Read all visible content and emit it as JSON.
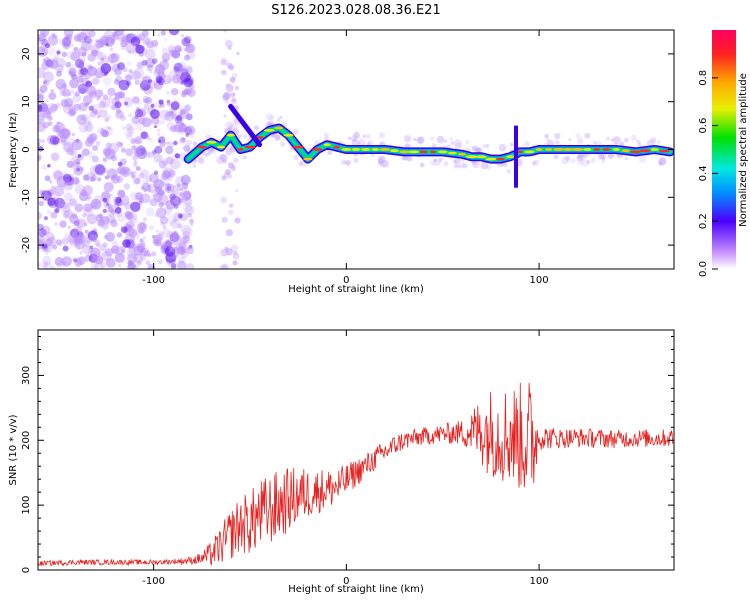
{
  "title": "S126.2023.028.08.36.E21",
  "colors": {
    "snr_line": "#e8201e",
    "cloud": "#9b55ff",
    "track_core": "#ff2020"
  },
  "chart_data": [
    {
      "type": "heatmap",
      "xlabel": "Height of straight line (km)",
      "ylabel": "Frequency (Hz)",
      "xlim": [
        -160,
        170
      ],
      "ylim": [
        -25,
        25
      ],
      "x_ticks": [
        -100,
        0,
        100
      ],
      "y_ticks": [
        -20,
        -10,
        0,
        10,
        20
      ],
      "colorbar": {
        "label": "Normalized spectral amplitude",
        "range": [
          0.0,
          1.0
        ],
        "ticks": [
          "0.0",
          "0.2",
          "0.4",
          "0.6",
          "0.8"
        ]
      },
      "noise_region_x": [
        -160,
        -80
      ],
      "track": {
        "x": [
          -82,
          -75,
          -70,
          -65,
          -60,
          -55,
          -50,
          -45,
          -40,
          -35,
          -30,
          -25,
          -22,
          -20,
          -15,
          -10,
          -5,
          0,
          10,
          20,
          30,
          40,
          50,
          60,
          65,
          70,
          75,
          80,
          85,
          88,
          90,
          95,
          100,
          110,
          120,
          130,
          140,
          150,
          160,
          168
        ],
        "y": [
          -2,
          0.5,
          1.5,
          0.5,
          3,
          0,
          0.5,
          2.5,
          4,
          4.5,
          3,
          0.5,
          -1,
          -2,
          0,
          1,
          0.5,
          0,
          0,
          0,
          -0.5,
          -0.5,
          -0.5,
          -1,
          -1.5,
          -1.5,
          -2,
          -2,
          -1.5,
          -1,
          -0.5,
          -0.5,
          0,
          0,
          0,
          0,
          0,
          -0.5,
          0,
          -0.5
        ]
      }
    },
    {
      "type": "line",
      "xlabel": "Height of straight line (km)",
      "ylabel": "SNR (10 * v/v)",
      "xlim": [
        -160,
        170
      ],
      "ylim": [
        0,
        370
      ],
      "x_ticks": [
        -100,
        0,
        100
      ],
      "y_ticks": [
        0,
        100,
        200,
        300
      ],
      "series": [
        {
          "x": [
            -160,
            -140,
            -120,
            -100,
            -90,
            -80,
            -75,
            -70,
            -65,
            -60,
            -55,
            -50,
            -45,
            -40,
            -35,
            -30,
            -25,
            -20,
            -15,
            -10,
            -5,
            0,
            5,
            10,
            15,
            20,
            25,
            30,
            40,
            50,
            60,
            65,
            70,
            75,
            80,
            85,
            90,
            94,
            96,
            98,
            100,
            110,
            120,
            130,
            140,
            150,
            160,
            170
          ],
          "y": [
            10,
            12,
            12,
            12,
            13,
            15,
            18,
            25,
            38,
            55,
            70,
            72,
            85,
            92,
            100,
            108,
            115,
            118,
            122,
            125,
            128,
            138,
            150,
            160,
            172,
            182,
            192,
            200,
            206,
            210,
            212,
            214,
            215,
            213,
            210,
            208,
            205,
            200,
            195,
            200,
            205,
            203,
            204,
            203,
            202,
            203,
            203,
            204
          ],
          "noise_amp": [
            4,
            4,
            4,
            4,
            4,
            6,
            10,
            20,
            30,
            40,
            45,
            50,
            55,
            55,
            55,
            50,
            45,
            40,
            35,
            32,
            30,
            25,
            22,
            20,
            18,
            18,
            16,
            15,
            14,
            15,
            20,
            35,
            55,
            70,
            75,
            80,
            85,
            95,
            110,
            60,
            20,
            16,
            15,
            15,
            14,
            14,
            14,
            14
          ]
        }
      ]
    }
  ]
}
